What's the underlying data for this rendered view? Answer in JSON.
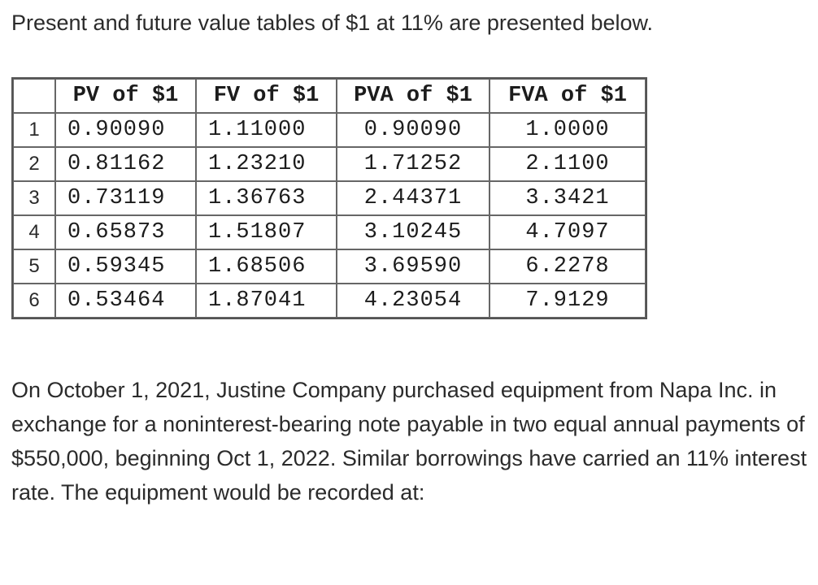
{
  "intro_text": "Present and future value tables of $1 at 11% are presented below.",
  "table": {
    "headers": [
      "",
      "PV of $1",
      "FV of $1",
      "PVA of $1",
      "FVA of $1"
    ],
    "rows": [
      [
        "1",
        "0.90090",
        "1.11000",
        "0.90090",
        "1.0000"
      ],
      [
        "2",
        "0.81162",
        "1.23210",
        "1.71252",
        "2.1100"
      ],
      [
        "3",
        "0.73119",
        "1.36763",
        "2.44371",
        "3.3421"
      ],
      [
        "4",
        "0.65873",
        "1.51807",
        "3.10245",
        "4.7097"
      ],
      [
        "5",
        "0.59345",
        "1.68506",
        "3.69590",
        "6.2278"
      ],
      [
        "6",
        "0.53464",
        "1.87041",
        "4.23054",
        "7.9129"
      ]
    ]
  },
  "question_text": "On October 1, 2021, Justine Company purchased equipment from Napa Inc. in exchange for a noninterest-bearing note payable in two equal annual payments of $550,000, beginning Oct 1, 2022. Similar borrowings have carried an 11% interest rate. The equipment would be recorded at:"
}
